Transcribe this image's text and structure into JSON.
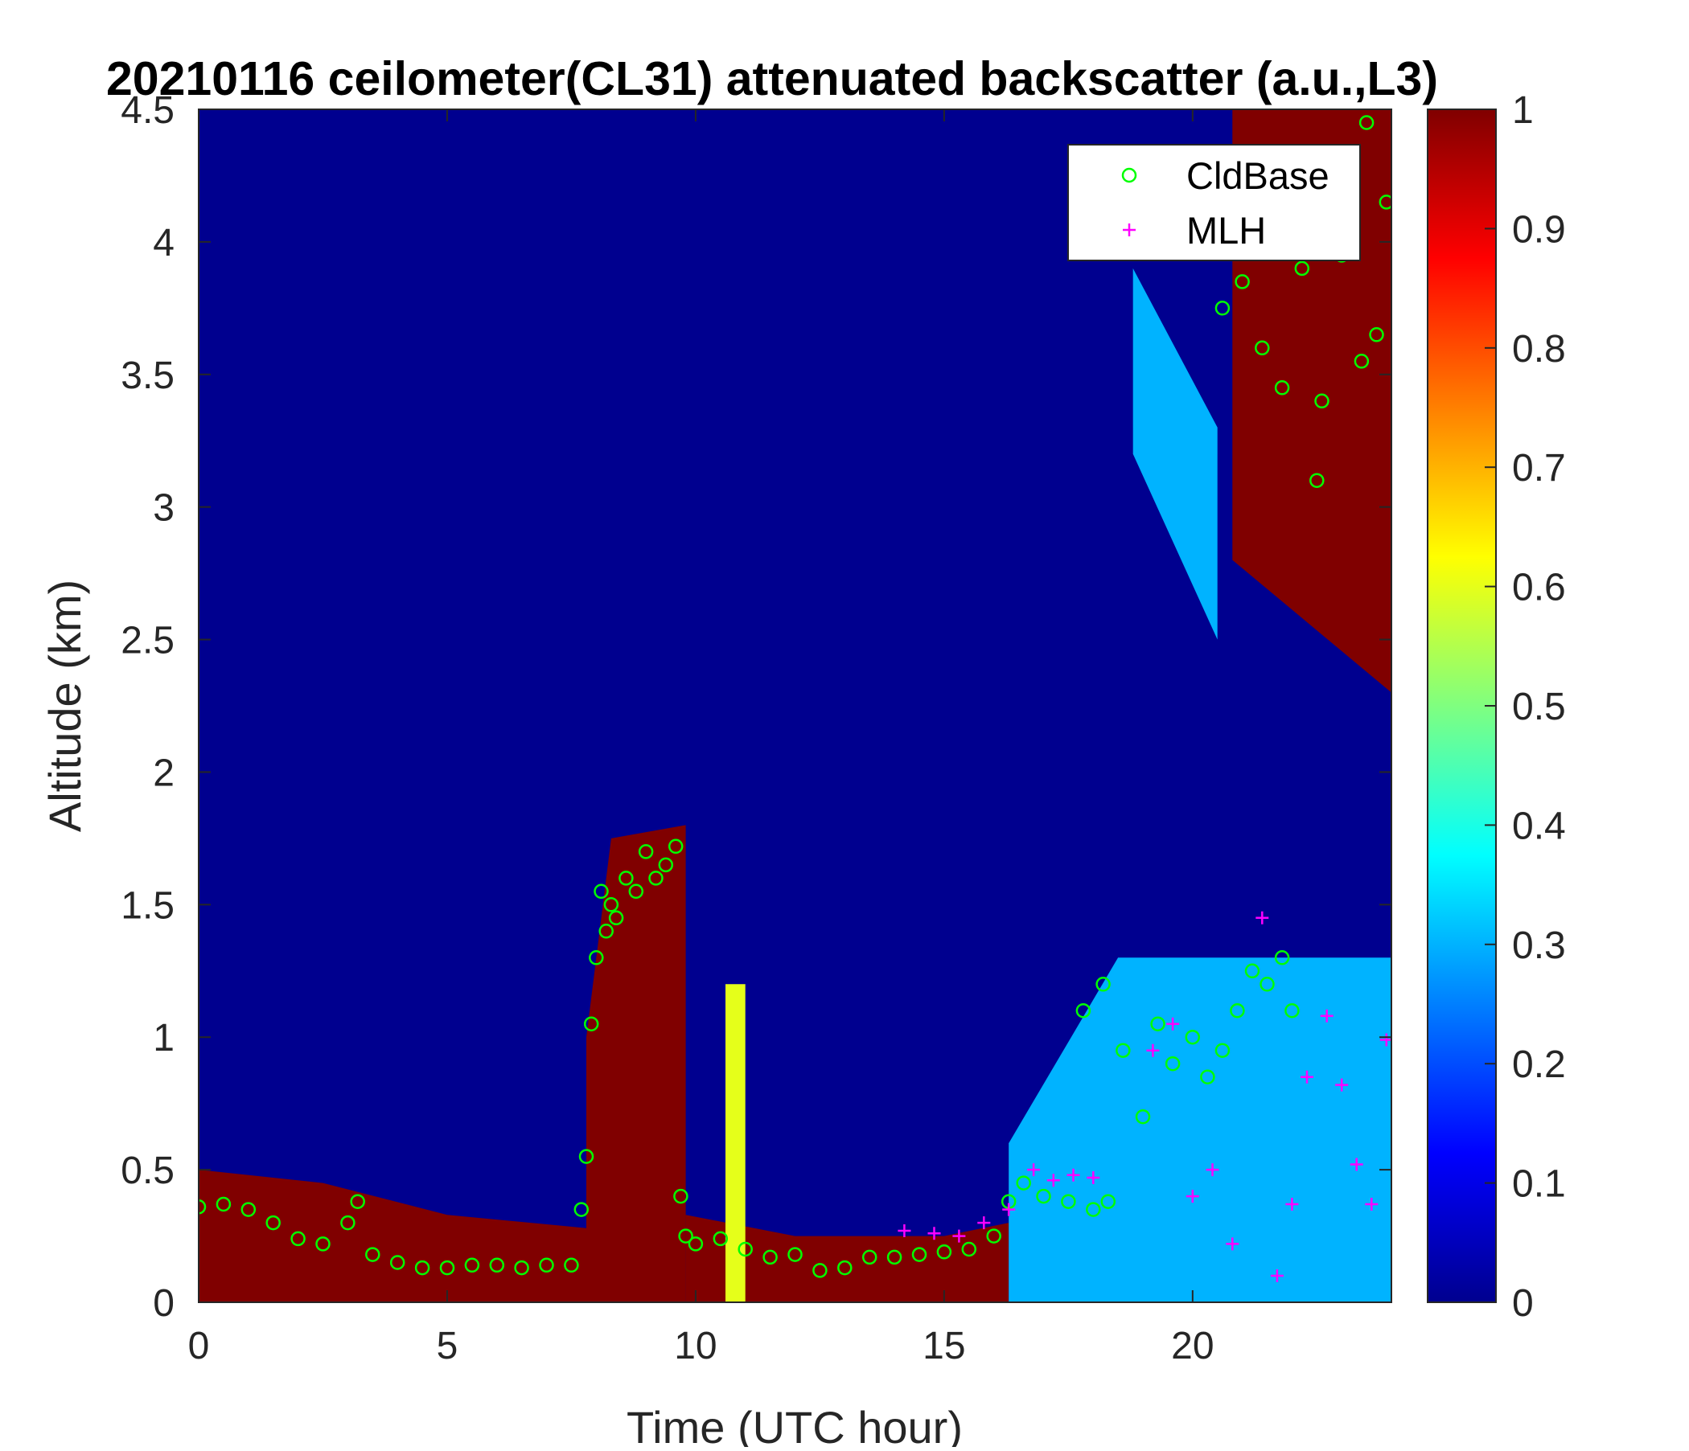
{
  "chart_data": {
    "type": "heatmap",
    "title": "20210116 ceilometer(CL31) attenuated backscatter (a.u.,L3)",
    "xlabel": "Time (UTC hour)",
    "ylabel": "Altitude (km)",
    "xlim": [
      0,
      24
    ],
    "ylim": [
      0,
      4.5
    ],
    "xticks": [
      0,
      5,
      10,
      15,
      20
    ],
    "xtick_labels": [
      "0",
      "5",
      "10",
      "15",
      "20"
    ],
    "yticks": [
      0,
      0.5,
      1,
      1.5,
      2,
      2.5,
      3,
      3.5,
      4,
      4.5
    ],
    "ytick_labels": [
      "0",
      "0.5",
      "1",
      "1.5",
      "2",
      "2.5",
      "3",
      "3.5",
      "4",
      "4.5"
    ],
    "colorbar": {
      "colormap": "jet",
      "range": [
        0,
        1
      ],
      "ticks": [
        0,
        0.1,
        0.2,
        0.3,
        0.4,
        0.5,
        0.6,
        0.7,
        0.8,
        0.9,
        1
      ],
      "tick_labels": [
        "0",
        "0.1",
        "0.2",
        "0.3",
        "0.4",
        "0.5",
        "0.6",
        "0.7",
        "0.8",
        "0.9",
        "1"
      ]
    },
    "background_value": 0,
    "backscatter_regions": [
      {
        "t": [
          0,
          2.5,
          5,
          7.8
        ],
        "top_km": [
          0.5,
          0.45,
          0.33,
          0.28
        ],
        "value": 1
      },
      {
        "t": [
          7.8,
          8.3,
          9.8
        ],
        "top_km": [
          1.0,
          1.75,
          1.8
        ],
        "value": 1
      },
      {
        "t": [
          9.8,
          12,
          15,
          16.3
        ],
        "top_km": [
          0.33,
          0.25,
          0.25,
          0.3
        ],
        "value": 1
      },
      {
        "t": [
          10.6,
          11.0
        ],
        "top_km": [
          1.2,
          1.2
        ],
        "value": 0.6
      },
      {
        "t": [
          16.3,
          18.5,
          24
        ],
        "top_km": [
          0.6,
          1.3,
          1.3
        ],
        "value": 0.3
      },
      {
        "t": [
          20.8,
          24
        ],
        "top_km": [
          4.5,
          4.5
        ],
        "bottom_km": [
          2.8,
          2.3
        ],
        "value": 1
      },
      {
        "t": [
          18.8,
          20.5
        ],
        "top_km": [
          3.9,
          3.3
        ],
        "bottom_km": [
          3.2,
          2.5
        ],
        "value": 0.3
      }
    ],
    "series": [
      {
        "name": "CldBase",
        "marker": "circle",
        "color": "#00ff00",
        "x": [
          0.0,
          0.5,
          1.0,
          1.5,
          2.0,
          2.5,
          3.0,
          3.2,
          3.5,
          4.0,
          4.5,
          5.0,
          5.5,
          6.0,
          6.5,
          7.0,
          7.5,
          7.7,
          7.8,
          7.9,
          8.0,
          8.1,
          8.2,
          8.3,
          8.4,
          8.6,
          8.8,
          9.0,
          9.2,
          9.4,
          9.6,
          9.7,
          9.8,
          10.0,
          10.5,
          11.0,
          11.5,
          12.0,
          12.5,
          13.0,
          13.5,
          14.0,
          14.5,
          15.0,
          15.5,
          16.0,
          16.3,
          16.6,
          17.0,
          17.5,
          18.0,
          18.3,
          17.8,
          18.2,
          18.6,
          19.0,
          19.3,
          19.6,
          20.0,
          20.3,
          20.6,
          20.9,
          21.2,
          21.5,
          21.8,
          22.0,
          20.6,
          21.0,
          21.4,
          21.8,
          22.2,
          22.6,
          23.0,
          23.4,
          23.7,
          23.9,
          22.5,
          23.0,
          23.5
        ],
        "y": [
          0.36,
          0.37,
          0.35,
          0.3,
          0.24,
          0.22,
          0.3,
          0.38,
          0.18,
          0.15,
          0.13,
          0.13,
          0.14,
          0.14,
          0.13,
          0.14,
          0.14,
          0.35,
          0.55,
          1.05,
          1.3,
          1.55,
          1.4,
          1.5,
          1.45,
          1.6,
          1.55,
          1.7,
          1.6,
          1.65,
          1.72,
          0.4,
          0.25,
          0.22,
          0.24,
          0.2,
          0.17,
          0.18,
          0.12,
          0.13,
          0.17,
          0.17,
          0.18,
          0.19,
          0.2,
          0.25,
          0.38,
          0.45,
          0.4,
          0.38,
          0.35,
          0.38,
          1.1,
          1.2,
          0.95,
          0.7,
          1.05,
          0.9,
          1.0,
          0.85,
          0.95,
          1.1,
          1.25,
          1.2,
          1.3,
          1.1,
          3.75,
          3.85,
          3.6,
          3.45,
          3.9,
          3.4,
          3.95,
          3.55,
          3.65,
          4.15,
          3.1,
          4.25,
          4.45
        ]
      },
      {
        "name": "MLH",
        "marker": "plus",
        "color": "#ff00ff",
        "x": [
          14.2,
          14.8,
          15.3,
          15.8,
          16.3,
          16.8,
          17.2,
          17.6,
          18.0,
          19.2,
          19.6,
          20.0,
          20.4,
          20.8,
          21.4,
          21.7,
          22.0,
          22.3,
          22.7,
          23.0,
          23.3,
          23.6,
          23.9
        ],
        "y": [
          0.27,
          0.26,
          0.25,
          0.3,
          0.35,
          0.5,
          0.46,
          0.48,
          0.47,
          0.95,
          1.05,
          0.4,
          0.5,
          0.22,
          1.45,
          0.1,
          0.37,
          0.85,
          1.08,
          0.82,
          0.52,
          0.37,
          0.99
        ]
      }
    ],
    "legend": {
      "position": "top-right",
      "entries": [
        "CldBase",
        "MLH"
      ]
    },
    "grid": false
  }
}
